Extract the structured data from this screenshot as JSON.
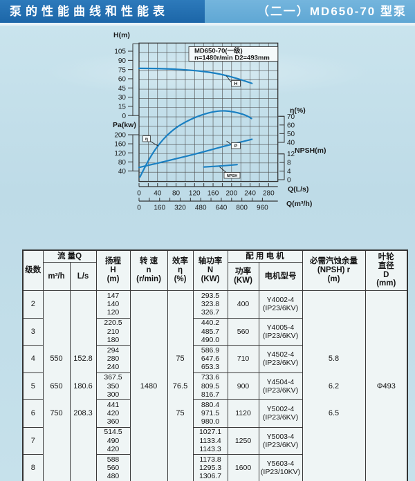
{
  "header": {
    "left_title": "泵的性能曲线和性能表",
    "right_title": "（二一）MD650-70 型泵"
  },
  "chart_data": {
    "type": "line",
    "title_line1": "MD650-70(一级)",
    "title_line2": "n=1480r/min  D2=493mm",
    "curve_color": "#1a80c2",
    "x_axis": {
      "label_ls": "Q(L/s)",
      "ticks_ls": [
        0,
        40,
        80,
        120,
        160,
        200,
        240,
        280
      ],
      "label_m3h": "Q(m³/h)",
      "ticks_m3h": [
        0,
        160,
        320,
        480,
        640,
        800,
        960
      ],
      "range_ls": [
        0,
        300
      ]
    },
    "y_axes": [
      {
        "id": "H",
        "label": "H(m)",
        "side": "left",
        "ticks": [
          105,
          90,
          75,
          60,
          45,
          30,
          15,
          0
        ]
      },
      {
        "id": "Pa",
        "label": "Pa(kw)",
        "side": "left",
        "ticks": [
          200,
          160,
          120,
          80,
          40
        ]
      },
      {
        "id": "eta",
        "label": "η(%)",
        "side": "right",
        "ticks": [
          70,
          60,
          50,
          40
        ]
      },
      {
        "id": "NPSH",
        "label": "NPSH(m)",
        "side": "right",
        "ticks": [
          12,
          8,
          4,
          0
        ]
      }
    ],
    "series": [
      {
        "name": "H",
        "axis": "H",
        "points": [
          [
            0,
            77
          ],
          [
            40,
            76.8
          ],
          [
            80,
            75.6
          ],
          [
            120,
            73.5
          ],
          [
            150,
            71
          ],
          [
            180,
            67
          ],
          [
            210,
            61
          ],
          [
            244,
            52.5
          ]
        ]
      },
      {
        "name": "η",
        "axis": "eta",
        "points": [
          [
            2,
            0
          ],
          [
            15,
            14
          ],
          [
            30,
            28
          ],
          [
            45,
            39
          ],
          [
            60,
            48
          ],
          [
            80,
            57
          ],
          [
            100,
            63.5
          ],
          [
            120,
            68.5
          ],
          [
            140,
            72.5
          ],
          [
            160,
            75.3
          ],
          [
            178,
            76.4
          ],
          [
            195,
            76
          ],
          [
            215,
            74
          ],
          [
            232,
            71
          ],
          [
            243,
            67.5
          ]
        ]
      },
      {
        "name": "P",
        "axis": "Pa",
        "points": [
          [
            0,
            55.5
          ],
          [
            40,
            74
          ],
          [
            80,
            94
          ],
          [
            120,
            114
          ],
          [
            160,
            136
          ],
          [
            200,
            158
          ],
          [
            244,
            180
          ]
        ]
      },
      {
        "name": "NPSH",
        "axis": "NPSH",
        "points": [
          [
            140,
            5.9
          ],
          [
            165,
            6.2
          ],
          [
            190,
            6.6
          ],
          [
            212,
            7.0
          ]
        ]
      }
    ]
  },
  "table": {
    "headers": {
      "stage": "级数",
      "flow": "流 量Q",
      "flow_m3h": "m³/h",
      "flow_ls": "L/s",
      "head": "扬程\nH\n(m)",
      "speed": "转 速\nn\n(r/min)",
      "eff": "效率\nη\n(%)",
      "power": "轴功率\nN\n(KW)",
      "motor": "配 用 电 机",
      "motor_power": "功率\n(KW)",
      "motor_model": "电机型号",
      "npsh": "必需汽蚀余量\n(NPSH) r\n(m)",
      "impeller": "叶轮\n直径\nD\n(mm)"
    },
    "rows": [
      {
        "stage": "2",
        "m3h": "",
        "ls": "",
        "H": "147\n140\n120",
        "speed": "",
        "eff": "",
        "N": "293.5\n323.8\n326.7",
        "kw": "400",
        "model": "Y4002-4\n(IP23/6KV)",
        "npsh": "",
        "d": ""
      },
      {
        "stage": "3",
        "m3h": "",
        "ls": "",
        "H": "220.5\n210\n180",
        "speed": "",
        "eff": "",
        "N": "440.2\n485.7\n490.0",
        "kw": "560",
        "model": "Y4005-4\n(IP23/6KV)",
        "npsh": "",
        "d": ""
      },
      {
        "stage": "4",
        "m3h": "550",
        "ls": "152.8",
        "H": "294\n280\n240",
        "speed": "",
        "eff": "75",
        "N": "586.9\n647.6\n653.3",
        "kw": "710",
        "model": "Y4502-4\n(IP23/6KV)",
        "npsh": "5.8",
        "d": ""
      },
      {
        "stage": "5",
        "m3h": "650",
        "ls": "180.6",
        "H": "367.5\n350\n300",
        "speed": "1480",
        "eff": "76.5",
        "N": "733.6\n809.5\n816.7",
        "kw": "900",
        "model": "Y4504-4\n(IP23/6KV)",
        "npsh": "6.2",
        "d": "Φ493"
      },
      {
        "stage": "6",
        "m3h": "750",
        "ls": "208.3",
        "H": "441\n420\n360",
        "speed": "",
        "eff": "75",
        "N": "880.4\n971.5\n980.0",
        "kw": "1120",
        "model": "Y5002-4\n(IP23/6KV)",
        "npsh": "6.5",
        "d": ""
      },
      {
        "stage": "7",
        "m3h": "",
        "ls": "",
        "H": "514.5\n490\n420",
        "speed": "",
        "eff": "",
        "N": "1027.1\n1133.4\n1143.3",
        "kw": "1250",
        "model": "Y5003-4\n(IP23/6KV)",
        "npsh": "",
        "d": ""
      },
      {
        "stage": "8",
        "m3h": "",
        "ls": "",
        "H": "588\n560\n480",
        "speed": "",
        "eff": "",
        "N": "1173.8\n1295.3\n1306.7",
        "kw": "1600",
        "model": "Y5603-4\n(IP23/10KV)",
        "npsh": "",
        "d": ""
      }
    ]
  }
}
